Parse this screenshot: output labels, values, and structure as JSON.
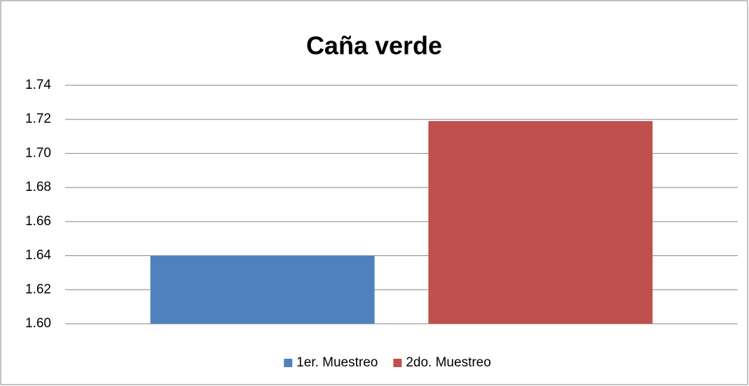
{
  "chart_data": {
    "type": "bar",
    "title": "Caña verde",
    "categories": [
      null
    ],
    "series": [
      {
        "name": "1er. Muestreo",
        "color": "#4f81bd",
        "values": [
          1.64
        ]
      },
      {
        "name": "2do. Muestreo",
        "color": "#c0504d",
        "values": [
          1.719
        ]
      }
    ],
    "ylim": [
      1.6,
      1.74
    ],
    "yticks": [
      {
        "value": 1.6,
        "label": "1.60"
      },
      1.62,
      1.64,
      1.66,
      1.68,
      {
        "value": 1.7,
        "label": "1.70"
      },
      1.72,
      1.74
    ],
    "grid": true,
    "legend": "bottom"
  }
}
